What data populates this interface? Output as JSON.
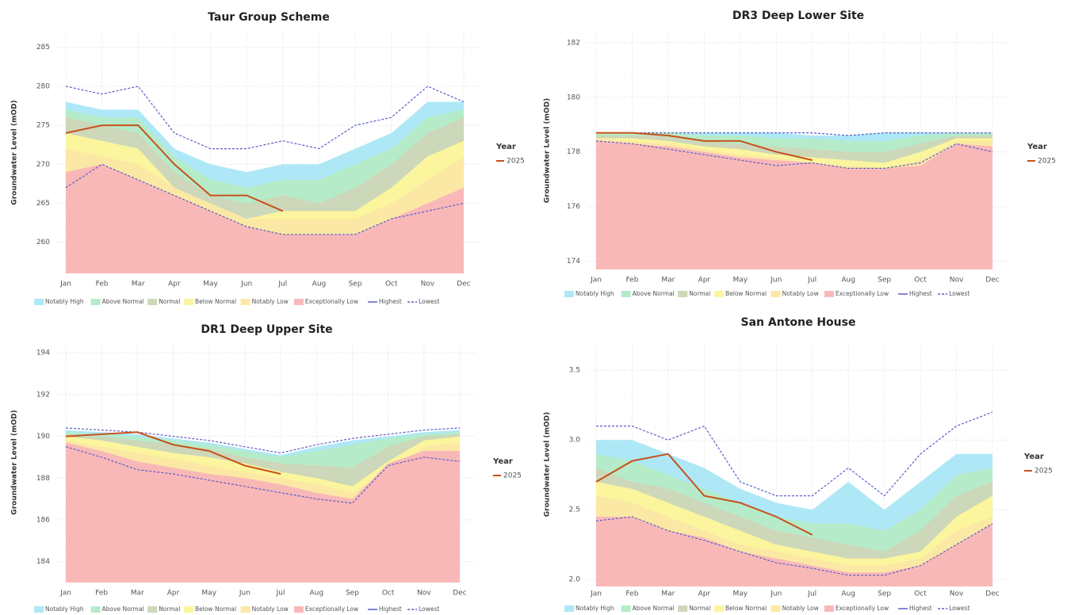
{
  "chart_data": [
    {
      "type": "area",
      "title": "Taur Group Scheme",
      "y_label": "Groundwater Level (mOD)",
      "legend_title": "Year",
      "grid": true,
      "categories": [
        "Jan",
        "Feb",
        "Mar",
        "Apr",
        "May",
        "Jun",
        "Jul",
        "Aug",
        "Sep",
        "Oct",
        "Nov",
        "Dec"
      ],
      "ylim": [
        256,
        287
      ],
      "yticks": [
        260,
        265,
        270,
        275,
        280,
        285
      ],
      "series": [
        {
          "name": "Notably High",
          "kind": "band",
          "color": "#aee8f6",
          "values": [
            278,
            277,
            277,
            272,
            270,
            269,
            270,
            270,
            272,
            274,
            278,
            278
          ]
        },
        {
          "name": "Above Normal",
          "kind": "band",
          "color": "#b6ebc9",
          "values": [
            277,
            276,
            276,
            271,
            268,
            267,
            268,
            268,
            270,
            272,
            276,
            277
          ]
        },
        {
          "name": "Normal",
          "kind": "band",
          "color": "#ccd8b9",
          "values": [
            276,
            275,
            274,
            269,
            266,
            265,
            266,
            265,
            267,
            270,
            274,
            276
          ]
        },
        {
          "name": "Below Normal",
          "kind": "band",
          "color": "#fbf59e",
          "values": [
            274,
            273,
            272,
            267,
            264,
            263,
            264,
            264,
            264,
            267,
            271,
            273
          ]
        },
        {
          "name": "Notably Low",
          "kind": "band",
          "color": "#fbe8a4",
          "values": [
            272,
            271,
            270,
            267,
            265,
            263,
            263,
            263,
            263,
            265,
            268,
            271
          ]
        },
        {
          "name": "Exceptionally Low",
          "kind": "band",
          "color": "#f9b8b8",
          "values": [
            269,
            270,
            268,
            266,
            264,
            262,
            261,
            261,
            261,
            263,
            265,
            267
          ]
        },
        {
          "name": "Highest",
          "kind": "ref",
          "color": "#5a5fc8",
          "values": [
            280,
            279,
            280,
            274,
            272,
            272,
            273,
            272,
            275,
            276,
            280,
            278
          ]
        },
        {
          "name": "Lowest",
          "kind": "ref",
          "color": "#5a5fc8",
          "values": [
            267,
            270,
            268,
            266,
            264,
            262,
            261,
            261,
            261,
            263,
            264,
            265
          ]
        },
        {
          "name": "2025",
          "kind": "year",
          "color": "#c8511b",
          "values": [
            274,
            275,
            275,
            270,
            266,
            266,
            264,
            null,
            null,
            null,
            null,
            null
          ]
        }
      ]
    },
    {
      "type": "area",
      "title": "DR3 Deep Lower Site",
      "y_label": "Groundwater Level (mOD)",
      "legend_title": "Year",
      "grid": true,
      "categories": [
        "Jan",
        "Feb",
        "Mar",
        "Apr",
        "May",
        "Jun",
        "Jul",
        "Aug",
        "Sep",
        "Oct",
        "Nov",
        "Dec"
      ],
      "ylim": [
        173.7,
        182.4
      ],
      "yticks": [
        174,
        176,
        178,
        180,
        182
      ],
      "series": [
        {
          "name": "Notably High",
          "kind": "band",
          "color": "#aee8f6",
          "values": [
            178.7,
            178.7,
            178.7,
            178.7,
            178.7,
            178.7,
            178.6,
            178.6,
            178.7,
            178.7,
            178.7,
            178.7
          ]
        },
        {
          "name": "Above Normal",
          "kind": "band",
          "color": "#b6ebc9",
          "values": [
            178.7,
            178.7,
            178.7,
            178.6,
            178.6,
            178.5,
            178.5,
            178.4,
            178.4,
            178.6,
            178.7,
            178.7
          ]
        },
        {
          "name": "Normal",
          "kind": "band",
          "color": "#ccd8b9",
          "values": [
            178.6,
            178.6,
            178.6,
            178.4,
            178.3,
            178.2,
            178.1,
            178,
            178,
            178.3,
            178.6,
            178.6
          ]
        },
        {
          "name": "Below Normal",
          "kind": "band",
          "color": "#fbf59e",
          "values": [
            178.5,
            178.5,
            178.4,
            178.2,
            178.1,
            177.9,
            177.8,
            177.7,
            177.6,
            178,
            178.5,
            178.5
          ]
        },
        {
          "name": "Notably Low",
          "kind": "band",
          "color": "#fbe8a4",
          "values": [
            178.5,
            178.4,
            178.3,
            178.1,
            177.9,
            177.8,
            177.6,
            177.5,
            177.4,
            177.7,
            178.4,
            178.4
          ]
        },
        {
          "name": "Exceptionally Low",
          "kind": "band",
          "color": "#f9b8b8",
          "values": [
            178.4,
            178.3,
            178.2,
            178,
            177.8,
            177.7,
            177.6,
            177.4,
            177.4,
            177.5,
            178.3,
            178.2
          ]
        },
        {
          "name": "Highest",
          "kind": "ref",
          "color": "#5a5fc8",
          "values": [
            178.7,
            178.7,
            178.7,
            178.7,
            178.7,
            178.7,
            178.7,
            178.6,
            178.7,
            178.7,
            178.7,
            178.7
          ]
        },
        {
          "name": "Lowest",
          "kind": "ref",
          "color": "#5a5fc8",
          "values": [
            178.4,
            178.3,
            178.1,
            177.9,
            177.7,
            177.5,
            177.6,
            177.4,
            177.4,
            177.6,
            178.3,
            178
          ]
        },
        {
          "name": "2025",
          "kind": "year",
          "color": "#c8511b",
          "values": [
            178.7,
            178.7,
            178.6,
            178.4,
            178.4,
            178,
            177.7,
            null,
            null,
            null,
            null,
            null
          ]
        }
      ]
    },
    {
      "type": "area",
      "title": "DR1 Deep Upper Site",
      "y_label": "Groundwater Level (mOD)",
      "legend_title": "Year",
      "grid": true,
      "categories": [
        "Jan",
        "Feb",
        "Mar",
        "Apr",
        "May",
        "Jun",
        "Jul",
        "Aug",
        "Sep",
        "Oct",
        "Nov",
        "Dec"
      ],
      "ylim": [
        183,
        194.5
      ],
      "yticks": [
        184,
        186,
        188,
        190,
        192,
        194
      ],
      "series": [
        {
          "name": "Notably High",
          "kind": "band",
          "color": "#aee8f6",
          "values": [
            190.3,
            190.2,
            190.1,
            189.9,
            189.7,
            189.4,
            189.1,
            189.5,
            189.8,
            190,
            190.2,
            190.3
          ]
        },
        {
          "name": "Above Normal",
          "kind": "band",
          "color": "#b6ebc9",
          "values": [
            190.2,
            190.1,
            190,
            189.8,
            189.6,
            189.3,
            189,
            189.3,
            189.6,
            189.9,
            190.1,
            190.2
          ]
        },
        {
          "name": "Normal",
          "kind": "band",
          "color": "#ccd8b9",
          "values": [
            190.1,
            190,
            189.8,
            189.6,
            189.4,
            189,
            188.7,
            188.6,
            188.5,
            189.5,
            190,
            190.1
          ]
        },
        {
          "name": "Below Normal",
          "kind": "band",
          "color": "#fbf59e",
          "values": [
            190,
            189.8,
            189.5,
            189.2,
            189,
            188.7,
            188.3,
            188,
            187.6,
            188.8,
            189.8,
            190
          ]
        },
        {
          "name": "Notably Low",
          "kind": "band",
          "color": "#fbe8a4",
          "values": [
            189.8,
            189.5,
            189.2,
            188.9,
            188.6,
            188.3,
            188,
            187.7,
            187.3,
            188.3,
            189.5,
            189.7
          ]
        },
        {
          "name": "Exceptionally Low",
          "kind": "band",
          "color": "#f9b8b8",
          "values": [
            189.7,
            189.3,
            188.8,
            188.5,
            188.2,
            188,
            187.7,
            187.3,
            187,
            188.7,
            189.3,
            189.3
          ]
        },
        {
          "name": "Highest",
          "kind": "ref",
          "color": "#5a5fc8",
          "values": [
            190.4,
            190.3,
            190.2,
            190,
            189.8,
            189.5,
            189.2,
            189.6,
            189.9,
            190.1,
            190.3,
            190.4
          ]
        },
        {
          "name": "Lowest",
          "kind": "ref",
          "color": "#5a5fc8",
          "values": [
            189.5,
            189,
            188.4,
            188.2,
            187.9,
            187.6,
            187.3,
            187,
            186.8,
            188.6,
            189,
            188.8
          ]
        },
        {
          "name": "2025",
          "kind": "year",
          "color": "#c8511b",
          "values": [
            190,
            190.1,
            190.2,
            189.6,
            189.3,
            188.6,
            188.2,
            null,
            null,
            null,
            null,
            null
          ]
        }
      ]
    },
    {
      "type": "area",
      "title": "San Antone House",
      "y_label": "Groundwater Level (mOD)",
      "legend_title": "Year",
      "grid": true,
      "categories": [
        "Jan",
        "Feb",
        "Mar",
        "Apr",
        "May",
        "Jun",
        "Jul",
        "Aug",
        "Sep",
        "Oct",
        "Nov",
        "Dec"
      ],
      "ylim": [
        1.95,
        3.7
      ],
      "yticks": [
        {
          "value": 2,
          "label": "2.0"
        },
        2.5,
        {
          "value": 3,
          "label": "3.0"
        },
        3.5
      ],
      "series": [
        {
          "name": "Notably High",
          "kind": "band",
          "color": "#aee8f6",
          "values": [
            3,
            3,
            2.9,
            2.8,
            2.65,
            2.55,
            2.5,
            2.7,
            2.5,
            2.7,
            2.9,
            2.9
          ]
        },
        {
          "name": "Above Normal",
          "kind": "band",
          "color": "#b6ebc9",
          "values": [
            2.9,
            2.85,
            2.75,
            2.65,
            2.55,
            2.45,
            2.4,
            2.4,
            2.35,
            2.5,
            2.75,
            2.8
          ]
        },
        {
          "name": "Normal",
          "kind": "band",
          "color": "#ccd8b9",
          "values": [
            2.8,
            2.7,
            2.65,
            2.55,
            2.45,
            2.35,
            2.3,
            2.25,
            2.2,
            2.35,
            2.6,
            2.7
          ]
        },
        {
          "name": "Below Normal",
          "kind": "band",
          "color": "#fbf59e",
          "values": [
            2.7,
            2.65,
            2.55,
            2.45,
            2.35,
            2.25,
            2.2,
            2.15,
            2.15,
            2.2,
            2.45,
            2.6
          ]
        },
        {
          "name": "Notably Low",
          "kind": "band",
          "color": "#fbe8a4",
          "values": [
            2.6,
            2.55,
            2.45,
            2.35,
            2.25,
            2.2,
            2.15,
            2.1,
            2.1,
            2.15,
            2.35,
            2.45
          ]
        },
        {
          "name": "Exceptionally Low",
          "kind": "band",
          "color": "#f9b8b8",
          "values": [
            2.45,
            2.45,
            2.35,
            2.3,
            2.2,
            2.15,
            2.1,
            2.05,
            2.05,
            2.1,
            2.25,
            2.4
          ]
        },
        {
          "name": "Highest",
          "kind": "ref",
          "color": "#5a5fc8",
          "values": [
            3.1,
            3.1,
            3,
            3.1,
            2.7,
            2.6,
            2.6,
            2.8,
            2.6,
            2.9,
            3.1,
            3.2
          ]
        },
        {
          "name": "Lowest",
          "kind": "ref",
          "color": "#5a5fc8",
          "values": [
            2.42,
            2.45,
            2.35,
            2.28,
            2.2,
            2.12,
            2.08,
            2.03,
            2.03,
            2.1,
            2.25,
            2.4
          ]
        },
        {
          "name": "2025",
          "kind": "year",
          "color": "#c8511b",
          "values": [
            2.7,
            2.85,
            2.9,
            2.6,
            2.55,
            2.45,
            2.32,
            null,
            null,
            null,
            null,
            null
          ]
        }
      ]
    }
  ]
}
